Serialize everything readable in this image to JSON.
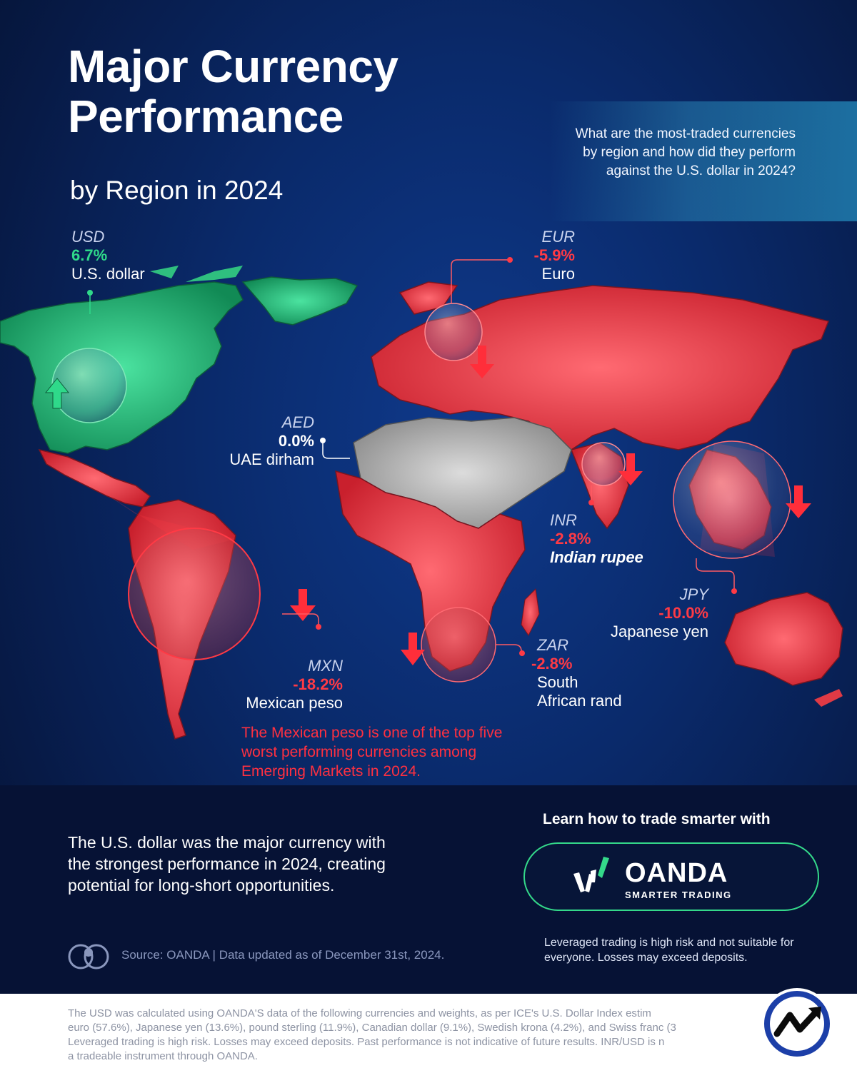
{
  "header": {
    "title_line1": "Major Currency",
    "title_line2": "Performance",
    "subtitle": "by Region in 2024",
    "question": "What are the most-traded currencies by region and how did they perform against the U.S. dollar in 2024?"
  },
  "currencies": {
    "usd": {
      "code": "USD",
      "pct": "6.7%",
      "name": "U.S. dollar",
      "change": 6.7
    },
    "eur": {
      "code": "EUR",
      "pct": "-5.9%",
      "name": "Euro",
      "change": -5.9
    },
    "aed": {
      "code": "AED",
      "pct": "0.0%",
      "name": "UAE dirham",
      "change": 0.0
    },
    "inr": {
      "code": "INR",
      "pct": "-2.8%",
      "name": "Indian rupee",
      "change": -2.8
    },
    "jpy": {
      "code": "JPY",
      "pct": "-10.0%",
      "name": "Japanese yen",
      "change": -10.0
    },
    "zar": {
      "code": "ZAR",
      "pct": "-2.8%",
      "name_line1": "South",
      "name_line2": "African rand",
      "change": -2.8
    },
    "mxn": {
      "code": "MXN",
      "pct": "-18.2%",
      "name": "Mexican peso",
      "change": -18.2
    }
  },
  "notes": {
    "mexico": "The Mexican peso is one of the top five worst performing currencies among Emerging Markets in 2024.",
    "summary": "The U.S. dollar was the major currency with the strongest performance in 2024, creating potential for long-short opportunities.",
    "source": "Source: OANDA | Data updated as of December 31st, 2024."
  },
  "sponsor": {
    "learn": "Learn how to trade smarter with",
    "brand": "OANDA",
    "tagline": "SMARTER TRADING",
    "risk": "Leveraged trading is high risk and not suitable for everyone. Losses may exceed deposits."
  },
  "footer": {
    "line1": "The USD was calculated using OANDA'S data of the following currencies and weights, as per ICE's U.S. Dollar Index estim",
    "line2": "euro (57.6%), Japanese yen (13.6%), pound sterling (11.9%), Canadian dollar (9.1%), Swedish krona (4.2%), and Swiss franc (3",
    "line3": "Leveraged trading is high risk. Losses may exceed deposits. Past performance is not indicative of future results. INR/USD is n",
    "line4": "a tradeable instrument through OANDA."
  },
  "colors": {
    "gain": "#2fd98a",
    "loss": "#ff3a45",
    "neutral": "#bfbfbf",
    "background": "#0a2a6b"
  }
}
